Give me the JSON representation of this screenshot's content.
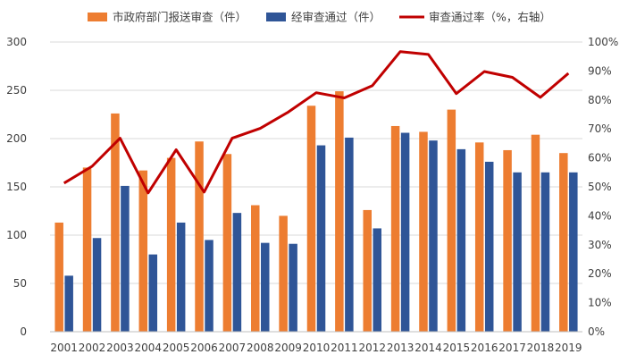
{
  "chart_data": {
    "type": "bar",
    "categories": [
      "2001",
      "2002",
      "2003",
      "2004",
      "2005",
      "2006",
      "2007",
      "2008",
      "2009",
      "2010",
      "2011",
      "2012",
      "2013",
      "2014",
      "2015",
      "2016",
      "2017",
      "2018",
      "2019"
    ],
    "series": [
      {
        "name": "市政府部门报送审查（件）",
        "type": "bar",
        "axis": "left",
        "color": "#ED7D31",
        "values": [
          113,
          170,
          226,
          167,
          180,
          197,
          184,
          131,
          120,
          234,
          249,
          126,
          213,
          207,
          230,
          196,
          188,
          204,
          185
        ]
      },
      {
        "name": "经审查通过（件）",
        "type": "bar",
        "axis": "left",
        "color": "#2F5597",
        "values": [
          58,
          97,
          151,
          80,
          113,
          95,
          123,
          92,
          91,
          193,
          201,
          107,
          206,
          198,
          189,
          176,
          165,
          165,
          165
        ]
      },
      {
        "name": "审查通过率（%，右轴）",
        "type": "line",
        "axis": "right",
        "color": "#C00000",
        "values": [
          51.3,
          57.1,
          66.8,
          47.9,
          62.8,
          48.2,
          66.8,
          70.2,
          75.8,
          82.5,
          80.7,
          84.9,
          96.7,
          95.7,
          82.2,
          89.8,
          87.8,
          80.9,
          89.2
        ]
      }
    ],
    "y_left": {
      "min": 0,
      "max": 300,
      "ticks": [
        "0",
        "50",
        "100",
        "150",
        "200",
        "250",
        "300"
      ]
    },
    "y_right": {
      "min": 0,
      "max": 100,
      "ticks": [
        "0%",
        "10%",
        "20%",
        "30%",
        "40%",
        "50%",
        "60%",
        "70%",
        "80%",
        "90%",
        "100%"
      ]
    },
    "grid": true,
    "legend_position": "top"
  }
}
